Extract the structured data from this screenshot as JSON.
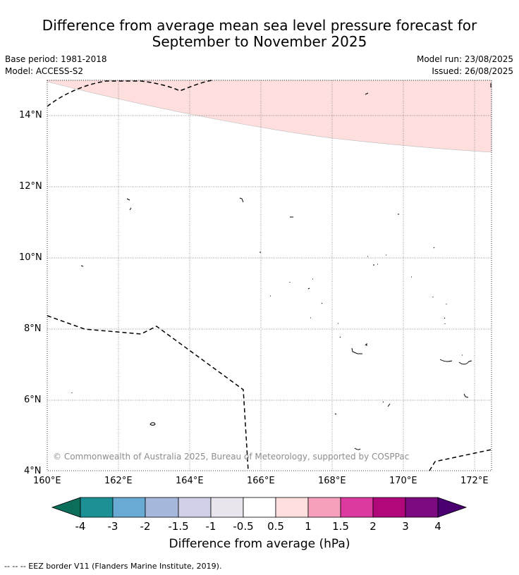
{
  "title_line1": "Difference from average mean sea level pressure forecast for",
  "title_line2": "September to November 2025",
  "base_period": "Base period: 1981-2018",
  "model": "Model: ACCESS-S2",
  "model_run": "Model run: 23/08/2025",
  "issued": "Issued: 26/08/2025",
  "map": {
    "lon_range": [
      160,
      172.5
    ],
    "lat_range": [
      3.9,
      14.95
    ],
    "lon_ticks": [
      "160°E",
      "162°E",
      "164°E",
      "166°E",
      "168°E",
      "170°E",
      "172°E"
    ],
    "lat_ticks": [
      "4°N",
      "6°N",
      "8°N",
      "10°N",
      "12°N",
      "14°N"
    ],
    "gridlines": "dotted",
    "anomaly_shading": {
      "range": "0.5 to 1",
      "color": "#ffe0e0",
      "region": "northern strip"
    },
    "copyright": "© Commonwealth of Australia 2025, Bureau of Meteorology, supported by COSPPac"
  },
  "colorbar": {
    "labels": [
      "-4",
      "-3",
      "-2",
      "-1.5",
      "-1",
      "-0.5",
      "0.5",
      "1",
      "1.5",
      "2",
      "3",
      "4"
    ],
    "colors": [
      "#0a6e5a",
      "#1d9096",
      "#68aad3",
      "#a5b8db",
      "#d0d0e8",
      "#e8e6ec",
      "#ffffff",
      "#ffdede",
      "#f7a0bc",
      "#dc3aa0",
      "#b0087a",
      "#7e0a82",
      "#4a0070"
    ],
    "title": "Difference from average (hPa)"
  },
  "footer": "--  --  -- EEZ border V11 (Flanders Marine Institute, 2019)."
}
